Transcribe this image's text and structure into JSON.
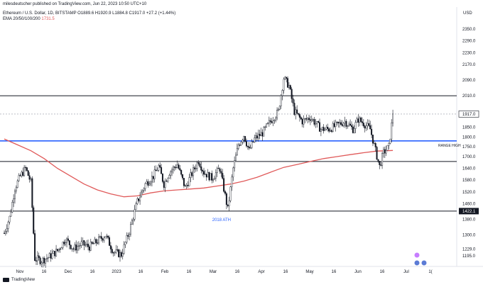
{
  "header": {
    "published": "milesdeutscher published on TradingView.com, Jun 22, 2023 10:50 UTC+10",
    "symbol_line": "Ethereum / U.S. Dollar, 1D, BITSTAMP  O1889.6  H1920.9  L1884.8  C1917.0  +27.2 (+1.44%)",
    "ema_label": "EMA 20/50/100/200",
    "ema_value": "1731.5"
  },
  "footer": {
    "brand": "TradingView"
  },
  "chart_data": {
    "type": "candlestick",
    "currency": "USD",
    "y_range": [
      1140,
      2390
    ],
    "price_ticks": [
      "2350.0",
      "2290.0",
      "2230.0",
      "2170.0",
      "2090.0",
      "2010.0",
      "1917.0",
      "1850.0",
      "1800.0",
      "1750.0",
      "1700.0",
      "1640.0",
      "1580.0",
      "1520.0",
      "1460.0",
      "1422.1",
      "1380.0",
      "1300.0",
      "1229.0",
      "1195.0"
    ],
    "x_ticks": [
      "Nov",
      "16",
      "Dec",
      "16",
      "2023",
      "16",
      "Feb",
      "16",
      "Mar",
      "16",
      "Apr",
      "16",
      "May",
      "16",
      "Jun",
      "16",
      "Jul",
      "1("
    ],
    "horizontal_levels": [
      {
        "price": 2010,
        "color": "#131722",
        "label": ""
      },
      {
        "price": 1917,
        "color": "#9598a1",
        "label": "",
        "dashed": true
      },
      {
        "price": 1780,
        "color": "#2962ff",
        "label": "RANGE HIGH"
      },
      {
        "price": 1675,
        "color": "#131722",
        "label": ""
      },
      {
        "price": 1422.1,
        "color": "#131722",
        "label": "1422.1"
      }
    ],
    "annotations": [
      {
        "text": "2018 ATH",
        "x_day": 168,
        "price": 1400
      }
    ],
    "current_price": "1917.0",
    "price_path": [
      [
        0,
        1310
      ],
      [
        4,
        1390
      ],
      [
        8,
        1540
      ],
      [
        12,
        1600
      ],
      [
        16,
        1640
      ],
      [
        20,
        1570
      ],
      [
        23,
        1180
      ],
      [
        28,
        1170
      ],
      [
        34,
        1190
      ],
      [
        40,
        1220
      ],
      [
        46,
        1280
      ],
      [
        52,
        1230
      ],
      [
        58,
        1255
      ],
      [
        64,
        1240
      ],
      [
        70,
        1270
      ],
      [
        76,
        1300
      ],
      [
        82,
        1215
      ],
      [
        88,
        1200
      ],
      [
        94,
        1320
      ],
      [
        100,
        1470
      ],
      [
        106,
        1560
      ],
      [
        112,
        1600
      ],
      [
        116,
        1650
      ],
      [
        120,
        1560
      ],
      [
        124,
        1620
      ],
      [
        130,
        1660
      ],
      [
        136,
        1540
      ],
      [
        140,
        1600
      ],
      [
        146,
        1680
      ],
      [
        150,
        1620
      ],
      [
        156,
        1590
      ],
      [
        162,
        1640
      ],
      [
        166,
        1500
      ],
      [
        168,
        1430
      ],
      [
        172,
        1640
      ],
      [
        176,
        1760
      ],
      [
        180,
        1810
      ],
      [
        184,
        1730
      ],
      [
        188,
        1790
      ],
      [
        194,
        1820
      ],
      [
        200,
        1880
      ],
      [
        206,
        1930
      ],
      [
        210,
        2100
      ],
      [
        214,
        2060
      ],
      [
        218,
        1930
      ],
      [
        224,
        1880
      ],
      [
        230,
        1900
      ],
      [
        234,
        1870
      ],
      [
        238,
        1840
      ],
      [
        244,
        1840
      ],
      [
        250,
        1860
      ],
      [
        256,
        1880
      ],
      [
        262,
        1840
      ],
      [
        266,
        1890
      ],
      [
        270,
        1870
      ],
      [
        275,
        1840
      ],
      [
        279,
        1730
      ],
      [
        282,
        1650
      ],
      [
        285,
        1720
      ],
      [
        289,
        1750
      ],
      [
        292,
        1917
      ]
    ],
    "ema200_path": [
      [
        0,
        1790
      ],
      [
        10,
        1760
      ],
      [
        20,
        1730
      ],
      [
        30,
        1690
      ],
      [
        40,
        1640
      ],
      [
        50,
        1600
      ],
      [
        60,
        1560
      ],
      [
        70,
        1530
      ],
      [
        80,
        1510
      ],
      [
        90,
        1495
      ],
      [
        100,
        1500
      ],
      [
        110,
        1515
      ],
      [
        120,
        1525
      ],
      [
        130,
        1530
      ],
      [
        140,
        1535
      ],
      [
        150,
        1540
      ],
      [
        160,
        1550
      ],
      [
        170,
        1560
      ],
      [
        180,
        1575
      ],
      [
        190,
        1595
      ],
      [
        200,
        1620
      ],
      [
        210,
        1645
      ],
      [
        220,
        1660
      ],
      [
        230,
        1675
      ],
      [
        240,
        1690
      ],
      [
        250,
        1700
      ],
      [
        260,
        1710
      ],
      [
        270,
        1720
      ],
      [
        280,
        1728
      ],
      [
        292,
        1731.5
      ]
    ],
    "ema_line_color": "#e05a5a",
    "up_color": "#ffffff",
    "down_color": "#131722",
    "grid": false
  }
}
